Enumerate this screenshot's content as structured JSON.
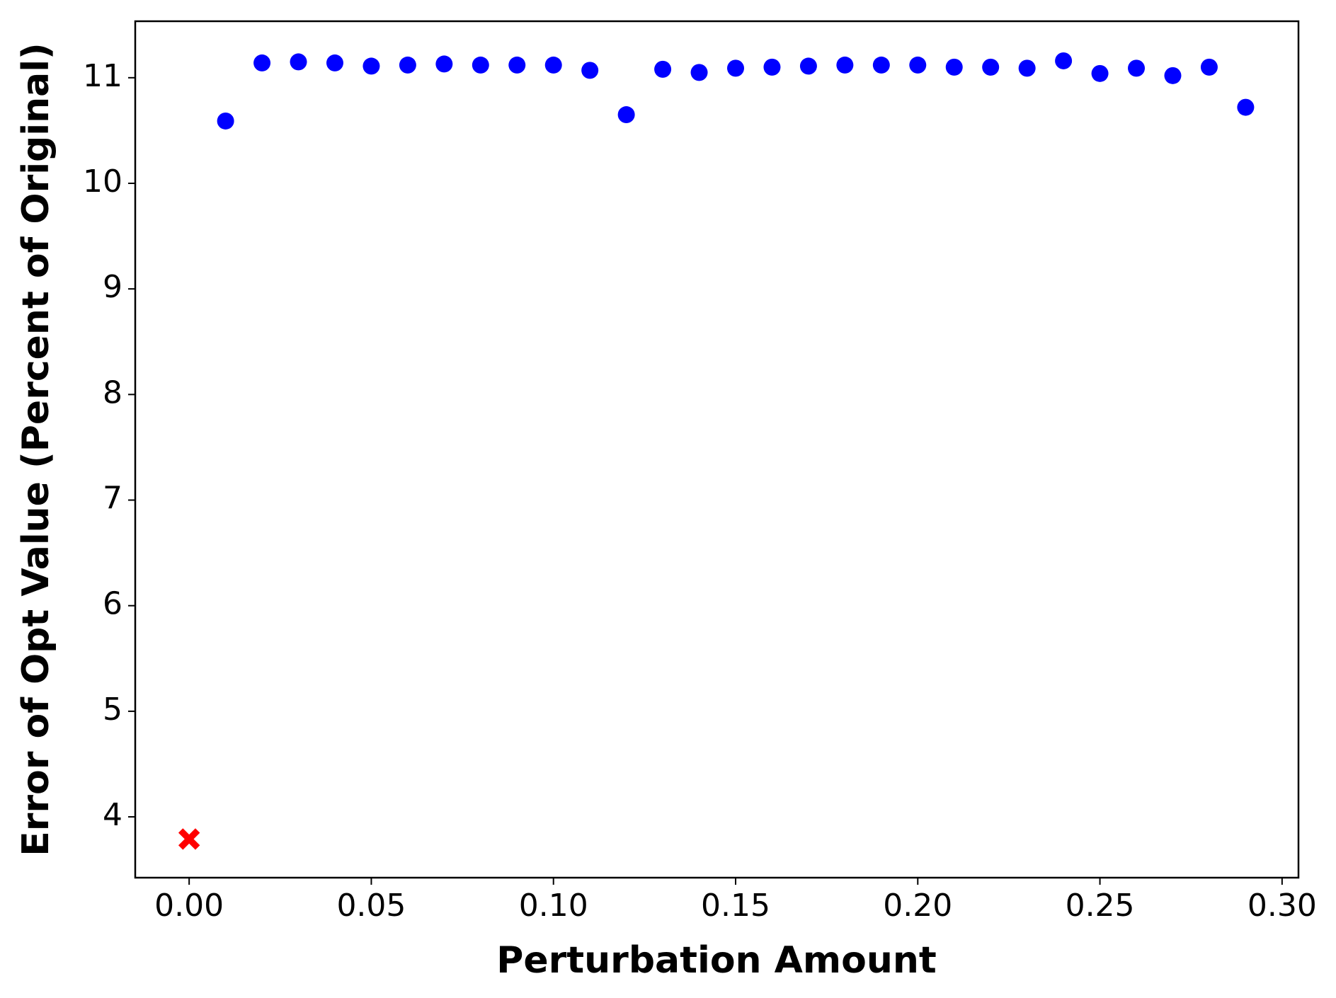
{
  "chart_data": {
    "type": "scatter",
    "xlabel": "Perturbation Amount",
    "ylabel": "Error of Opt Value (Percent of Original)",
    "series": [
      {
        "color": "#0000ff",
        "marker": "circle",
        "x": [
          0.01,
          0.02,
          0.03,
          0.04,
          0.05,
          0.06,
          0.07,
          0.08,
          0.09,
          0.1,
          0.11,
          0.12,
          0.13,
          0.14,
          0.15,
          0.16,
          0.17,
          0.18,
          0.19,
          0.2,
          0.21,
          0.22,
          0.23,
          0.24,
          0.25,
          0.26,
          0.27,
          0.28,
          0.29
        ],
        "values": [
          10.59,
          11.14,
          11.15,
          11.14,
          11.11,
          11.12,
          11.13,
          11.12,
          11.12,
          11.12,
          11.07,
          10.65,
          11.08,
          11.05,
          11.09,
          11.1,
          11.11,
          11.12,
          11.12,
          11.12,
          11.1,
          11.1,
          11.09,
          11.16,
          11.04,
          11.09,
          11.02,
          11.1,
          10.72
        ]
      },
      {
        "color": "#ff0000",
        "marker": "x",
        "x": [
          0.0
        ],
        "values": [
          3.79
        ]
      }
    ],
    "xlim": [
      -0.0148,
      0.3045
    ],
    "ylim": [
      3.424,
      11.535
    ],
    "xticks": [
      {
        "value": 0,
        "label": "0.00"
      },
      {
        "value": 0.05,
        "label": "0.05"
      },
      {
        "value": 0.1,
        "label": "0.10"
      },
      {
        "value": 0.15,
        "label": "0.15"
      },
      {
        "value": 0.2,
        "label": "0.20"
      },
      {
        "value": 0.25,
        "label": "0.25"
      },
      {
        "value": 0.3,
        "label": "0.30"
      }
    ],
    "yticks": [
      4,
      5,
      6,
      7,
      8,
      9,
      10,
      11
    ],
    "grid": false
  }
}
